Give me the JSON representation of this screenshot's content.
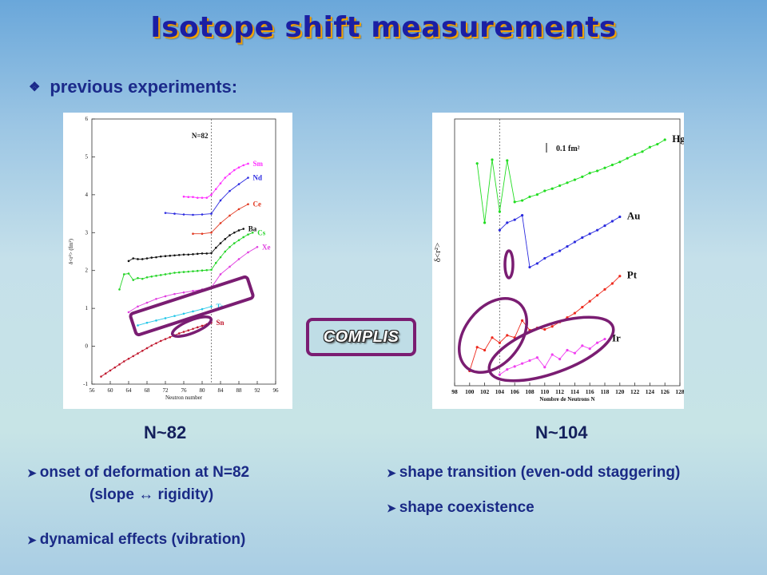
{
  "title": "Isotope shift measurements",
  "subtitle": "previous experiments:",
  "icons": {
    "subtitle_bullet": "diamond-bullet-icon",
    "bullets": "arrowhead-bullet-icon"
  },
  "colors": {
    "title": "#1b1fa3",
    "title_shadow": "#f2a000",
    "text": "#1a2a86",
    "annotation": "#7a1d72"
  },
  "complis_label": "COMPLIS",
  "left": {
    "label": "N~82",
    "bullets": [
      "onset of deformation at N=82",
      "(slope ↔ rigidity)",
      "dynamical effects (vibration)"
    ]
  },
  "right": {
    "label": "N~104",
    "bullets": [
      "shape transition (even-odd staggering)",
      "shape coexistence"
    ]
  },
  "chart_data": [
    {
      "type": "line",
      "title": "",
      "xlabel": "Neutron number",
      "ylabel": "δ<r²> (fm²)",
      "xlim": [
        56,
        96
      ],
      "ylim": [
        -1,
        6
      ],
      "xticks": [
        56,
        60,
        64,
        68,
        72,
        76,
        80,
        84,
        88,
        92,
        96
      ],
      "yticks": [
        -1,
        0,
        1,
        2,
        3,
        4,
        5,
        6
      ],
      "vline": {
        "x": 82,
        "label": "N=82"
      },
      "series": [
        {
          "name": "Sn",
          "color": "#c0182e",
          "x": [
            58,
            59,
            60,
            61,
            62,
            63,
            64,
            65,
            66,
            67,
            68,
            69,
            70,
            71,
            72,
            73,
            74,
            75,
            76,
            77,
            78,
            79,
            80,
            81,
            82
          ],
          "y": [
            -0.8,
            -0.72,
            -0.64,
            -0.56,
            -0.48,
            -0.4,
            -0.33,
            -0.26,
            -0.19,
            -0.12,
            -0.05,
            0.02,
            0.08,
            0.14,
            0.19,
            0.24,
            0.29,
            0.34,
            0.38,
            0.42,
            0.46,
            0.5,
            0.54,
            0.58,
            0.62
          ]
        },
        {
          "name": "Te",
          "color": "#22c6e8",
          "x": [
            66,
            68,
            70,
            72,
            74,
            76,
            78,
            80,
            82
          ],
          "y": [
            0.55,
            0.62,
            0.68,
            0.74,
            0.8,
            0.86,
            0.92,
            0.98,
            1.05
          ]
        },
        {
          "name": "Xe",
          "color": "#e040e0",
          "x": [
            64,
            66,
            68,
            70,
            72,
            74,
            76,
            78,
            80,
            82,
            84,
            86,
            88,
            90,
            92
          ],
          "y": [
            0.9,
            1.05,
            1.15,
            1.25,
            1.32,
            1.38,
            1.42,
            1.46,
            1.5,
            1.55,
            1.9,
            2.1,
            2.3,
            2.48,
            2.62
          ]
        },
        {
          "name": "Cs",
          "color": "#27d52a",
          "x": [
            62,
            63,
            64,
            65,
            66,
            67,
            68,
            69,
            70,
            71,
            72,
            73,
            74,
            75,
            76,
            77,
            78,
            79,
            80,
            81,
            82,
            83,
            84,
            85,
            86,
            87,
            88,
            89,
            90,
            91
          ],
          "y": [
            1.5,
            1.9,
            1.92,
            1.75,
            1.8,
            1.78,
            1.82,
            1.84,
            1.86,
            1.88,
            1.9,
            1.92,
            1.94,
            1.95,
            1.96,
            1.97,
            1.98,
            1.99,
            2.0,
            2.01,
            2.02,
            2.2,
            2.35,
            2.5,
            2.62,
            2.72,
            2.8,
            2.88,
            2.95,
            3.0
          ]
        },
        {
          "name": "Ba",
          "color": "#111111",
          "x": [
            64,
            65,
            66,
            67,
            68,
            69,
            70,
            71,
            72,
            73,
            74,
            75,
            76,
            77,
            78,
            79,
            80,
            81,
            82,
            83,
            84,
            85,
            86,
            87,
            88,
            89
          ],
          "y": [
            2.25,
            2.32,
            2.3,
            2.3,
            2.32,
            2.34,
            2.35,
            2.37,
            2.38,
            2.39,
            2.4,
            2.41,
            2.42,
            2.42,
            2.43,
            2.44,
            2.45,
            2.45,
            2.46,
            2.6,
            2.72,
            2.83,
            2.93,
            3.0,
            3.06,
            3.1
          ]
        },
        {
          "name": "Ce",
          "color": "#e23a22",
          "x": [
            78,
            80,
            82,
            84,
            86,
            88,
            90
          ],
          "y": [
            2.97,
            2.97,
            3.0,
            3.25,
            3.45,
            3.62,
            3.75
          ]
        },
        {
          "name": "Nd",
          "color": "#2c2be0",
          "x": [
            72,
            74,
            76,
            78,
            80,
            82,
            84,
            86,
            88,
            90
          ],
          "y": [
            3.52,
            3.5,
            3.48,
            3.47,
            3.48,
            3.5,
            3.85,
            4.1,
            4.28,
            4.45
          ]
        },
        {
          "name": "Sm",
          "color": "#ff30ff",
          "x": [
            76,
            77,
            78,
            79,
            80,
            81,
            82,
            83,
            84,
            85,
            86,
            87,
            88,
            89,
            90
          ],
          "y": [
            3.95,
            3.94,
            3.94,
            3.92,
            3.92,
            3.92,
            4.0,
            4.15,
            4.3,
            4.45,
            4.55,
            4.65,
            4.72,
            4.78,
            4.82
          ]
        }
      ]
    },
    {
      "type": "line",
      "title": "",
      "xlabel": "Nombre de Neutrons N",
      "ylabel": "δ<r²>",
      "xlim": [
        98,
        128
      ],
      "xticks": [
        98,
        100,
        102,
        104,
        106,
        108,
        110,
        112,
        114,
        116,
        118,
        120,
        122,
        124,
        126,
        128
      ],
      "vline": {
        "x": 104
      },
      "scale_bar": "0.1 fm²",
      "series": [
        {
          "name": "Hg",
          "color": "#22dd22",
          "x": [
            101,
            102,
            103,
            104,
            105,
            106,
            107,
            108,
            109,
            110,
            111,
            112,
            113,
            114,
            115,
            116,
            117,
            118,
            119,
            120,
            121,
            122,
            123,
            124,
            125,
            126
          ],
          "y": [
            0.9,
            0.1,
            0.95,
            0.25,
            0.94,
            0.38,
            0.4,
            0.45,
            0.48,
            0.53,
            0.56,
            0.6,
            0.64,
            0.68,
            0.72,
            0.77,
            0.8,
            0.84,
            0.88,
            0.92,
            0.97,
            1.02,
            1.06,
            1.12,
            1.16,
            1.22
          ]
        },
        {
          "name": "Au",
          "color": "#2a2ade",
          "x": [
            104,
            105,
            106,
            107,
            108,
            109,
            110,
            111,
            112,
            113,
            114,
            115,
            116,
            117,
            118,
            119,
            120
          ],
          "y": [
            0.0,
            0.1,
            0.14,
            0.2,
            -0.5,
            -0.45,
            -0.38,
            -0.33,
            -0.28,
            -0.22,
            -0.16,
            -0.1,
            -0.05,
            0.0,
            0.06,
            0.12,
            0.18
          ]
        },
        {
          "name": "Pt",
          "color": "#ee2a1e",
          "x": [
            100,
            101,
            102,
            103,
            104,
            105,
            106,
            107,
            108,
            109,
            110,
            111,
            112,
            113,
            114,
            115,
            116,
            117,
            118,
            119,
            120
          ],
          "y": [
            -1.9,
            -1.58,
            -1.62,
            -1.45,
            -1.52,
            -1.42,
            -1.45,
            -1.22,
            -1.35,
            -1.32,
            -1.34,
            -1.3,
            -1.24,
            -1.18,
            -1.12,
            -1.04,
            -0.96,
            -0.88,
            -0.8,
            -0.72,
            -0.62
          ]
        },
        {
          "name": "Ir",
          "color": "#f040f0",
          "x": [
            104,
            105,
            106,
            107,
            108,
            109,
            110,
            111,
            112,
            113,
            114,
            115,
            116,
            117,
            118
          ],
          "y": [
            -1.95,
            -1.88,
            -1.84,
            -1.8,
            -1.76,
            -1.72,
            -1.85,
            -1.68,
            -1.74,
            -1.62,
            -1.66,
            -1.56,
            -1.6,
            -1.52,
            -1.47
          ]
        }
      ]
    }
  ]
}
